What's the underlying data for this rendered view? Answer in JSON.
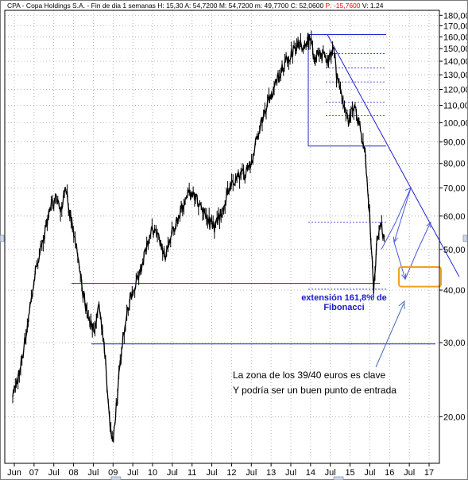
{
  "chart_data": {
    "type": "line",
    "header_prefix": "CPA - Copa Holdings S.A. - Fin de dia 1 semanas",
    "header_values": [
      {
        "label": "H: 15,30",
        "color": "#000000"
      },
      {
        "label": "A: 54,7200",
        "color": "#000000"
      },
      {
        "label": "M: 54,7200",
        "color": "#000000"
      },
      {
        "label": "m: 49,7700",
        "color": "#000000"
      },
      {
        "label": "C: 52,0600",
        "color": "#000000"
      },
      {
        "label": "P: -15,7600",
        "color": "#ff0000"
      },
      {
        "label": "V: 1.24",
        "color": "#000000"
      }
    ],
    "y_scale": "log",
    "ylim": [
      15.5,
      185
    ],
    "y_ticks": [
      {
        "value": 180,
        "label": "180,00"
      },
      {
        "value": 170,
        "label": "170,00"
      },
      {
        "value": 160,
        "label": "160,00"
      },
      {
        "value": 150,
        "label": "150,00"
      },
      {
        "value": 140,
        "label": "140,00"
      },
      {
        "value": 130,
        "label": "130,00"
      },
      {
        "value": 120,
        "label": "120,00"
      },
      {
        "value": 110,
        "label": "110,00"
      },
      {
        "value": 100,
        "label": "100,00"
      },
      {
        "value": 90,
        "label": "90,00"
      },
      {
        "value": 80,
        "label": "80,00"
      },
      {
        "value": 70,
        "label": "70,00"
      },
      {
        "value": 60,
        "label": "60,00"
      },
      {
        "value": 50,
        "label": "50,00"
      },
      {
        "value": 40,
        "label": "40,00"
      },
      {
        "value": 30,
        "label": "30,00"
      },
      {
        "value": 20,
        "label": "20,00"
      }
    ],
    "x_ticks": [
      "Jun",
      "07",
      "Jul",
      "08",
      "Jul",
      "09",
      "Jul",
      "10",
      "Jul",
      "11",
      "Jul",
      "12",
      "Jul",
      "13",
      "Jul",
      "14",
      "Jul",
      "15",
      "Jul",
      "16",
      "Jul",
      "17"
    ],
    "series": [
      {
        "points": [
          [
            2006.45,
            22
          ],
          [
            2006.6,
            25
          ],
          [
            2006.8,
            31
          ],
          [
            2007.0,
            42
          ],
          [
            2007.2,
            50
          ],
          [
            2007.45,
            63
          ],
          [
            2007.6,
            66
          ],
          [
            2007.75,
            62
          ],
          [
            2007.85,
            72
          ],
          [
            2007.95,
            62
          ],
          [
            2008.15,
            50
          ],
          [
            2008.3,
            40
          ],
          [
            2008.45,
            34
          ],
          [
            2008.6,
            32
          ],
          [
            2008.75,
            37
          ],
          [
            2008.9,
            28
          ],
          [
            2009.0,
            20
          ],
          [
            2009.1,
            17
          ],
          [
            2009.25,
            24
          ],
          [
            2009.4,
            32
          ],
          [
            2009.55,
            38
          ],
          [
            2009.8,
            44
          ],
          [
            2010.0,
            50
          ],
          [
            2010.15,
            56
          ],
          [
            2010.35,
            52
          ],
          [
            2010.5,
            48
          ],
          [
            2010.7,
            56
          ],
          [
            2010.85,
            60
          ],
          [
            2011.1,
            68
          ],
          [
            2011.3,
            66
          ],
          [
            2011.5,
            62
          ],
          [
            2011.65,
            58
          ],
          [
            2011.8,
            56
          ],
          [
            2012.0,
            62
          ],
          [
            2012.2,
            70
          ],
          [
            2012.4,
            74
          ],
          [
            2012.6,
            76
          ],
          [
            2012.8,
            82
          ],
          [
            2013.0,
            98
          ],
          [
            2013.2,
            112
          ],
          [
            2013.45,
            126
          ],
          [
            2013.7,
            140
          ],
          [
            2013.9,
            148
          ],
          [
            2014.05,
            155
          ],
          [
            2014.2,
            152
          ],
          [
            2014.3,
            162
          ],
          [
            2014.45,
            142
          ],
          [
            2014.6,
            146
          ],
          [
            2014.8,
            140
          ],
          [
            2014.95,
            152
          ],
          [
            2015.05,
            128
          ],
          [
            2015.2,
            114
          ],
          [
            2015.35,
            100
          ],
          [
            2015.5,
            110
          ],
          [
            2015.65,
            98
          ],
          [
            2015.8,
            84
          ],
          [
            2015.9,
            62
          ],
          [
            2016.02,
            40
          ],
          [
            2016.1,
            52
          ],
          [
            2016.2,
            58
          ],
          [
            2016.3,
            52
          ]
        ]
      }
    ],
    "annotations": {
      "support_level": 41.5,
      "lower_level": 29.8,
      "fib_levels": [
        162,
        146,
        135,
        125,
        112,
        104,
        88
      ],
      "fib_ext_level": 58,
      "fib_label_lines": [
        "extensión 161,8% de",
        "Fibonacci"
      ],
      "note_lines": [
        "La zona de los 39/40 euros es clave",
        "Y podría ser un buen punto de entrada"
      ],
      "target_box": [
        41.5,
        45
      ]
    }
  }
}
